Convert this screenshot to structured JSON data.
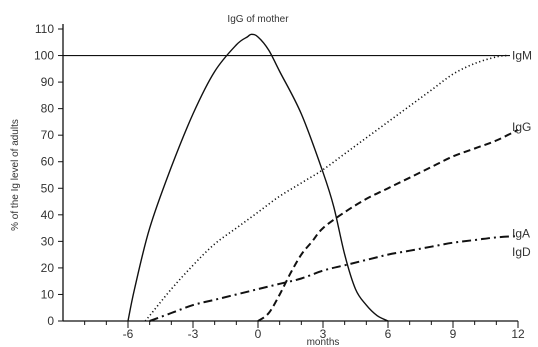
{
  "chart_data": {
    "type": "line",
    "title": "",
    "xlabel": "months",
    "ylabel": "% of the Ig level of adults",
    "xlim": [
      -9,
      12
    ],
    "ylim": [
      0,
      110
    ],
    "x_ticks": [
      -6,
      -3,
      0,
      3,
      6,
      9,
      12
    ],
    "y_ticks": [
      0,
      10,
      20,
      30,
      40,
      50,
      60,
      70,
      80,
      90,
      100,
      110
    ],
    "reference_line": {
      "y": 100
    },
    "annotation": "IgG of mother",
    "series": [
      {
        "name": "IgG of mother",
        "style": "solid",
        "points": [
          [
            -6,
            0
          ],
          [
            -5.7,
            12
          ],
          [
            -5,
            35
          ],
          [
            -4,
            58
          ],
          [
            -3,
            78
          ],
          [
            -2,
            94
          ],
          [
            -1,
            104
          ],
          [
            -0.5,
            107
          ],
          [
            -0.3,
            108
          ],
          [
            0,
            107
          ],
          [
            0.5,
            102
          ],
          [
            1,
            94
          ],
          [
            2,
            78
          ],
          [
            3,
            56
          ],
          [
            3.5,
            43
          ],
          [
            4,
            25
          ],
          [
            4.5,
            12
          ],
          [
            5,
            6
          ],
          [
            5.5,
            2
          ],
          [
            6,
            0
          ]
        ]
      },
      {
        "name": "IgM",
        "style": "dotted",
        "points": [
          [
            -5.2,
            0
          ],
          [
            -4,
            12
          ],
          [
            -3,
            21
          ],
          [
            -2,
            29
          ],
          [
            -1,
            35
          ],
          [
            0,
            41
          ],
          [
            1,
            47
          ],
          [
            2,
            52
          ],
          [
            3,
            57
          ],
          [
            4,
            63
          ],
          [
            5,
            69
          ],
          [
            6,
            75
          ],
          [
            7,
            81
          ],
          [
            8,
            87
          ],
          [
            9,
            93
          ],
          [
            10,
            97
          ],
          [
            11,
            99.5
          ],
          [
            11.5,
            100
          ]
        ],
        "end_label": "IgM",
        "end_label_value": 100
      },
      {
        "name": "IgG",
        "style": "dashed",
        "points": [
          [
            0,
            0
          ],
          [
            0.5,
            3
          ],
          [
            1,
            10
          ],
          [
            1.5,
            18
          ],
          [
            2,
            25
          ],
          [
            2.5,
            30
          ],
          [
            3,
            35
          ],
          [
            4,
            41
          ],
          [
            5,
            46
          ],
          [
            6,
            50
          ],
          [
            7,
            54
          ],
          [
            8,
            58
          ],
          [
            9,
            62
          ],
          [
            10,
            65
          ],
          [
            11,
            68
          ],
          [
            12,
            72
          ]
        ],
        "end_label": "IgG",
        "end_label_value": 73
      },
      {
        "name": "IgA IgD",
        "style": "dashdot",
        "points": [
          [
            -5,
            0
          ],
          [
            -4,
            3
          ],
          [
            -3,
            6
          ],
          [
            -2,
            8
          ],
          [
            -1,
            10
          ],
          [
            0,
            12
          ],
          [
            1,
            14
          ],
          [
            2,
            16
          ],
          [
            3,
            19
          ],
          [
            4,
            21
          ],
          [
            5,
            23
          ],
          [
            6,
            25
          ],
          [
            7,
            26.5
          ],
          [
            8,
            28
          ],
          [
            9,
            29.5
          ],
          [
            10,
            30.5
          ],
          [
            11,
            31.5
          ],
          [
            12,
            32
          ]
        ],
        "end_label": "IgA",
        "end_label_value": 33,
        "end_label_2": "IgD",
        "end_label_2_value": 26
      }
    ]
  }
}
